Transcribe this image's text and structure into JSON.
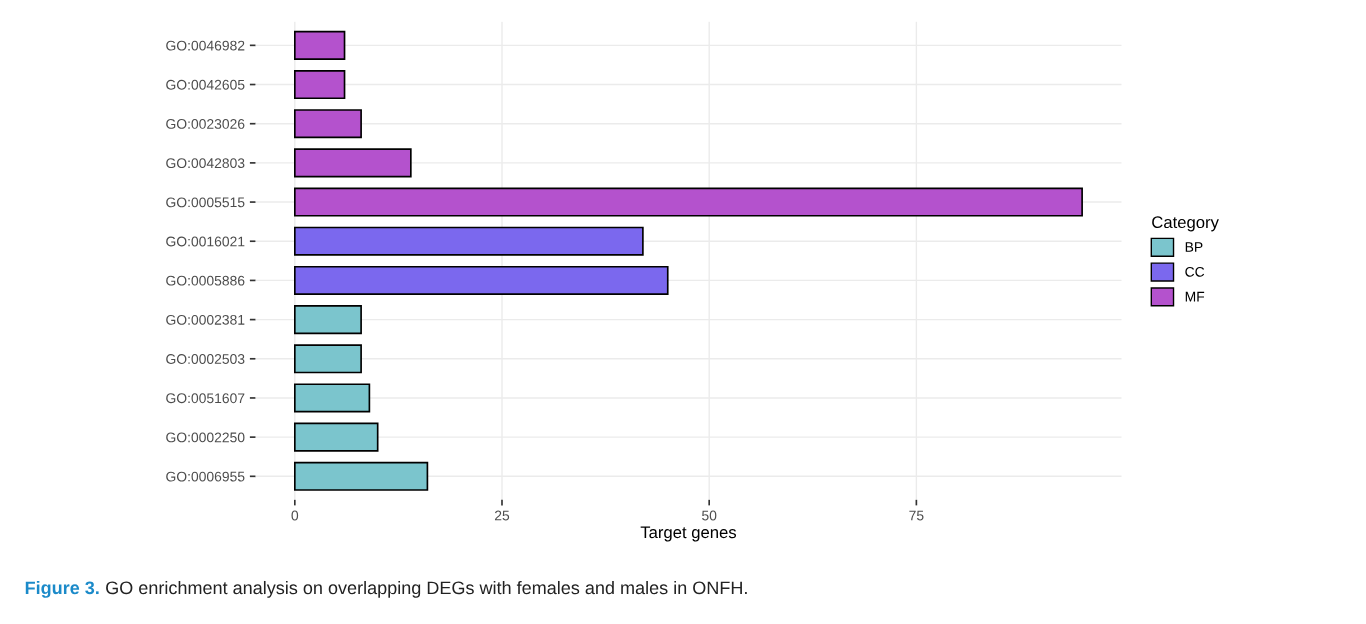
{
  "chart_data": {
    "type": "bar",
    "orientation": "horizontal",
    "categories": [
      "GO:0046982",
      "GO:0042605",
      "GO:0023026",
      "GO:0042803",
      "GO:0005515",
      "GO:0016021",
      "GO:0005886",
      "GO:0002381",
      "GO:0002503",
      "GO:0051607",
      "GO:0002250",
      "GO:0006955"
    ],
    "series": [
      {
        "name": "BP",
        "color": "#7bc5cd",
        "values": [
          null,
          null,
          null,
          null,
          null,
          null,
          null,
          8,
          8,
          9,
          10,
          16
        ]
      },
      {
        "name": "CC",
        "color": "#7b68ee",
        "values": [
          null,
          null,
          null,
          null,
          null,
          42,
          45,
          null,
          null,
          null,
          null,
          null
        ]
      },
      {
        "name": "MF",
        "color": "#b452cd",
        "values": [
          6,
          6,
          8,
          14,
          95,
          null,
          null,
          null,
          null,
          null,
          null,
          null
        ]
      }
    ],
    "xlabel": "Target genes",
    "legend_title": "Category",
    "legend": "right",
    "xlim": [
      -4.75,
      99.75
    ],
    "xticks": [
      0,
      25,
      50,
      75
    ],
    "grid": true,
    "annotations": [
      "Figure 3.",
      "GO enrichment analysis on overlapping DEGs with females and males in ONFH."
    ]
  }
}
